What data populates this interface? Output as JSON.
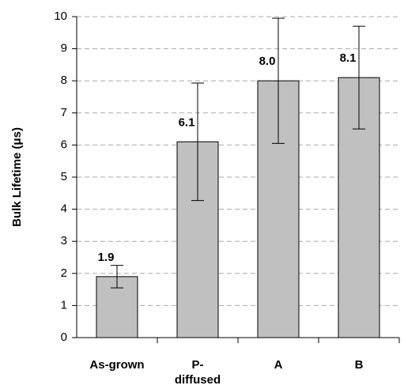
{
  "chart_data": {
    "type": "bar",
    "ylabel": "Bulk Lifetime (μs)",
    "categories": [
      "As-grown",
      "P- diffused",
      "A",
      "B"
    ],
    "values": [
      1.9,
      6.1,
      8.0,
      8.1
    ],
    "value_labels": [
      "1.9",
      "6.1",
      "8.0",
      "8.1"
    ],
    "errors": [
      0.35,
      1.83,
      1.95,
      1.6
    ],
    "color": "#c0c0c0",
    "ylim": [
      0,
      10
    ],
    "yticks": [
      0,
      1,
      2,
      3,
      4,
      5,
      6,
      7,
      8,
      9,
      10
    ],
    "grid": true
  }
}
